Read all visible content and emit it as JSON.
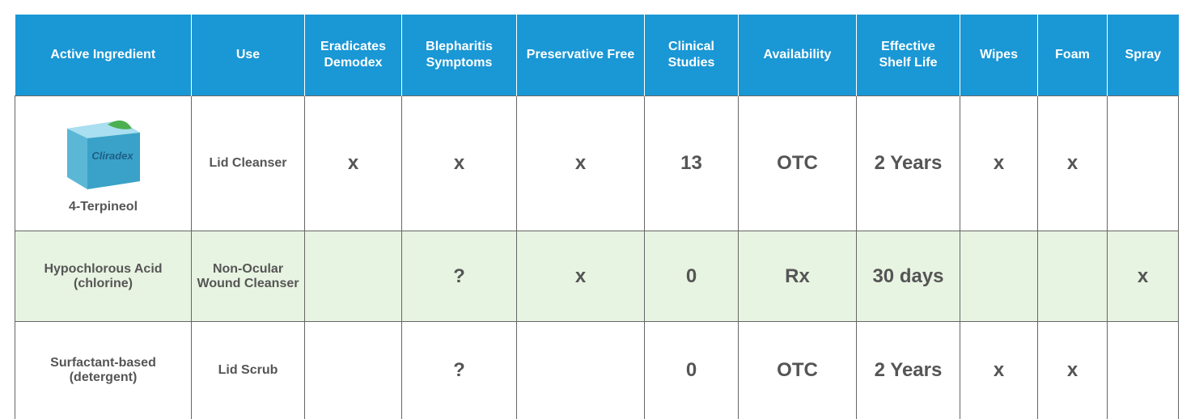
{
  "table": {
    "columns": [
      "Active Ingredient",
      "Use",
      "Eradicates Demodex",
      "Blepharitis Symptoms",
      "Preservative Free",
      "Clinical Studies",
      "Availability",
      "Effective Shelf Life",
      "Wipes",
      "Foam",
      "Spray"
    ],
    "rows": [
      [
        "4-Terpineol",
        "Lid Cleanser",
        "x",
        "x",
        "x",
        "13",
        "OTC",
        "2 Years",
        "x",
        "x",
        null
      ],
      [
        "Hypochlorous Acid (chlorine)",
        "Non-Ocular Wound Cleanser",
        null,
        "?",
        "x",
        "0",
        "Rx",
        "30 days",
        null,
        null,
        "x"
      ],
      [
        "Surfactant-based (detergent)",
        "Lid Scrub",
        null,
        "?",
        null,
        "0",
        "OTC",
        "2 Years",
        "x",
        "x",
        null
      ]
    ],
    "product_image_text": "Cliradex"
  }
}
